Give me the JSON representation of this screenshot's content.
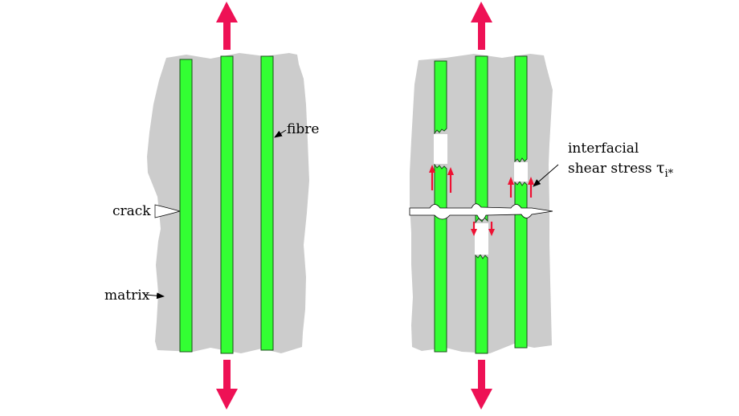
{
  "labels": {
    "crack": "crack",
    "fibre": "fibre",
    "matrix": "matrix",
    "interfacial": "interfacial",
    "shear_text": "shear stress ",
    "tau_symbol": "τ",
    "tau_subscript": "i*"
  },
  "colors": {
    "matrix": "#cccccc",
    "fibre": "#33ff33",
    "fibre_edge": "#1a4d1a",
    "load_arrow": "#ee1155",
    "shear_arrow": "#ee1133",
    "pointer": "#000000",
    "background": "#ffffff"
  },
  "icons": {
    "load_arrow": "red-double-arrow-icon",
    "shear_arrow": "shear-arrow-icon",
    "pointer_arrow": "pointer-arrow-icon"
  }
}
